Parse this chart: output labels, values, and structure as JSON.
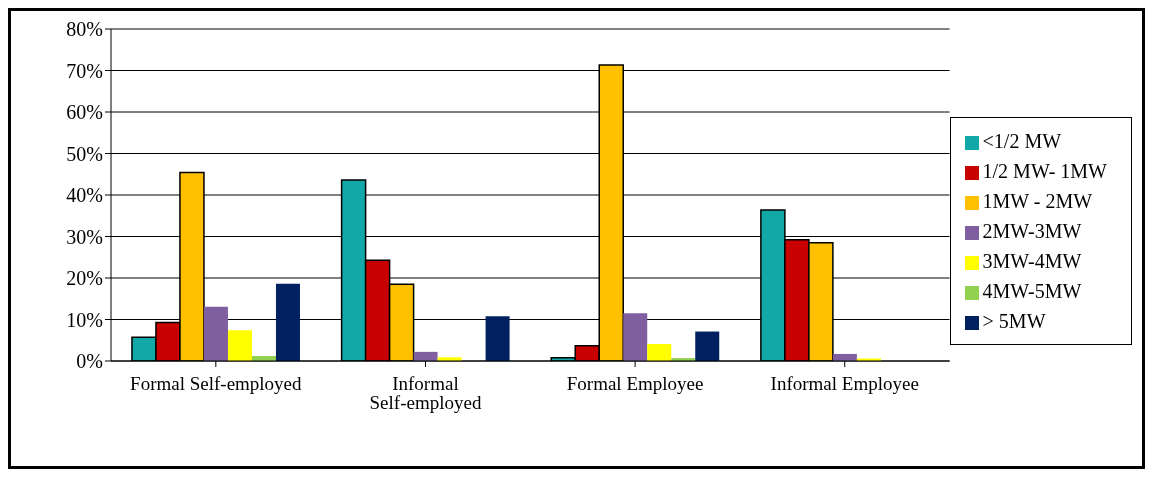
{
  "chart_data": {
    "type": "bar",
    "categories": [
      "Formal Self-employed",
      "Informal Self-employed",
      "Formal Employee",
      "Informal Employee"
    ],
    "series": [
      {
        "name": "<1/2 MW",
        "color": "#13a8a8",
        "values": [
          5.7,
          43.6,
          0.8,
          36.4
        ]
      },
      {
        "name": "1/2 MW- 1MW",
        "color": "#c80000",
        "values": [
          9.3,
          24.3,
          3.7,
          29.2
        ]
      },
      {
        "name": "1MW - 2MW",
        "color": "#ffc000",
        "values": [
          45.4,
          18.5,
          71.3,
          28.5
        ]
      },
      {
        "name": "2MW-3MW",
        "color": "#7f5f9f",
        "values": [
          13.1,
          2.2,
          11.5,
          1.7
        ]
      },
      {
        "name": "3MW-4MW",
        "color": "#ffff00",
        "values": [
          7.4,
          0.9,
          4.1,
          0.6
        ]
      },
      {
        "name": "4MW-5MW",
        "color": "#92d050",
        "values": [
          1.2,
          0,
          0.7,
          null
        ]
      },
      {
        "name": "> 5MW",
        "color": "#002060",
        "values": [
          18.6,
          10.8,
          7.1,
          null
        ]
      }
    ],
    "ylim": [
      0,
      80
    ],
    "yticks": [
      {
        "value": 0,
        "label": "0%"
      },
      {
        "value": 10,
        "label": "10%"
      },
      {
        "value": 20,
        "label": "20%"
      },
      {
        "value": 30,
        "label": "30%"
      },
      {
        "value": 40,
        "label": "40%"
      },
      {
        "value": 50,
        "label": "50%"
      },
      {
        "value": 60,
        "label": "60%"
      },
      {
        "value": 70,
        "label": "70%"
      },
      {
        "value": 80,
        "label": "80%"
      }
    ],
    "grid": "y",
    "legend": "right"
  }
}
